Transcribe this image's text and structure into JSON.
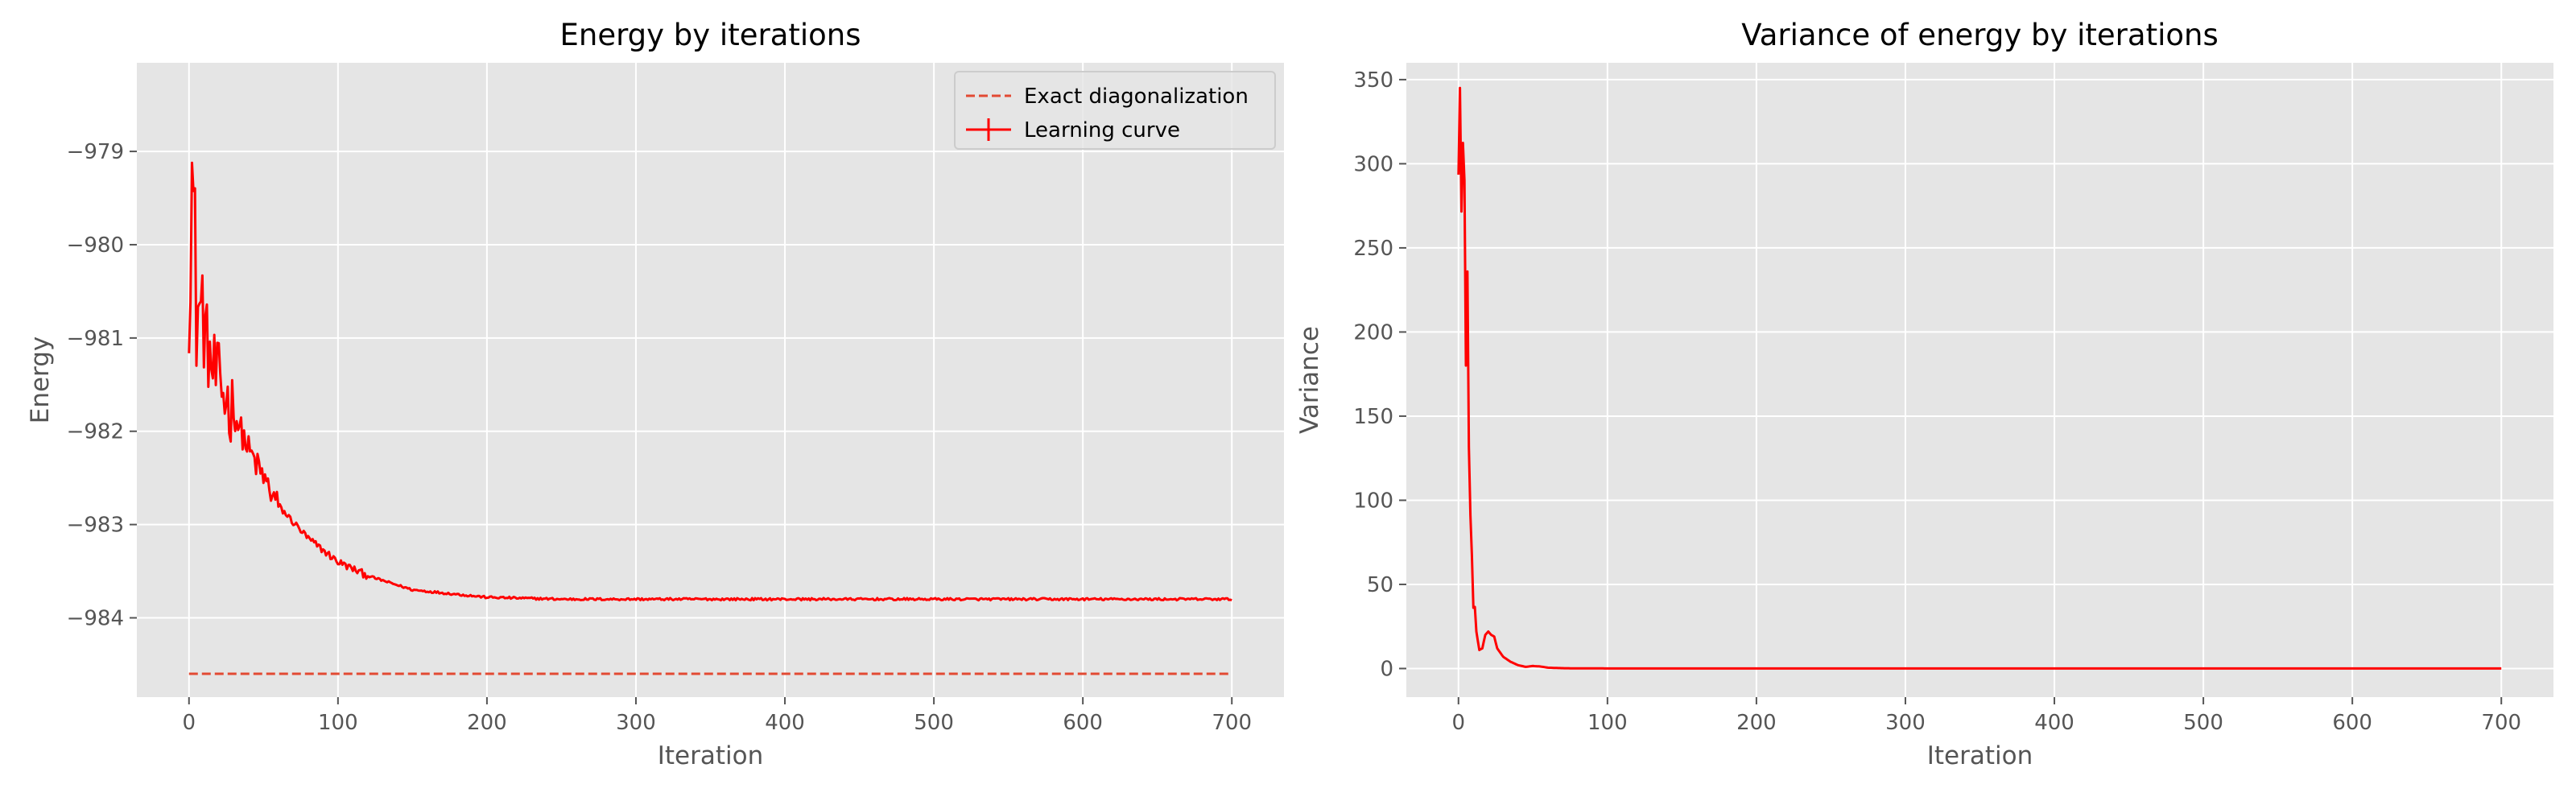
{
  "colors": {
    "figure_bg": "#ffffff",
    "axes_bg": "#e5e5e5",
    "grid": "#ffffff",
    "tick": "#555555",
    "series": "#ff0000",
    "exact": "#e24a33",
    "legend_bg": "#e5e5e5",
    "legend_border": "#cccccc"
  },
  "chart_data": [
    {
      "type": "line",
      "title": "Energy by iterations",
      "xlabel": "Iteration",
      "ylabel": "Energy",
      "xlim": [
        -35,
        735
      ],
      "ylim": [
        -984.85,
        -978.05
      ],
      "xticks": [
        0,
        100,
        200,
        300,
        400,
        500,
        600,
        700
      ],
      "yticks": [
        -984,
        -983,
        -982,
        -981,
        -980,
        -979
      ],
      "ytick_labels": [
        "−984",
        "−983",
        "−982",
        "−981",
        "−980",
        "−979"
      ],
      "grid": true,
      "legend": {
        "placement": "top-right",
        "entries": [
          "Exact diagonalization",
          "Learning curve"
        ]
      },
      "series": [
        {
          "name": "Exact diagonalization",
          "style": "dashed",
          "x": [
            0,
            700
          ],
          "y": [
            -984.6,
            -984.6
          ]
        },
        {
          "name": "Learning curve",
          "style": "solid-noisy",
          "x": [
            0,
            2,
            5,
            10,
            15,
            20,
            30,
            40,
            50,
            60,
            80,
            100,
            120,
            150,
            200,
            250,
            300,
            400,
            500,
            600,
            700
          ],
          "y": [
            -980.3,
            -979.2,
            -980.6,
            -980.9,
            -981.3,
            -981.5,
            -981.8,
            -982.2,
            -982.5,
            -982.8,
            -983.15,
            -983.4,
            -983.55,
            -983.7,
            -983.78,
            -983.8,
            -983.8,
            -983.8,
            -983.8,
            -983.8,
            -983.8
          ]
        }
      ]
    },
    {
      "type": "line",
      "title": "Variance of energy by iterations",
      "xlabel": "Iteration",
      "ylabel": "Variance",
      "xlim": [
        -35,
        735
      ],
      "ylim": [
        -17,
        360
      ],
      "xticks": [
        0,
        100,
        200,
        300,
        400,
        500,
        600,
        700
      ],
      "yticks": [
        0,
        50,
        100,
        150,
        200,
        250,
        300,
        350
      ],
      "ytick_labels": [
        "0",
        "50",
        "100",
        "150",
        "200",
        "250",
        "300",
        "350"
      ],
      "grid": true,
      "series": [
        {
          "style": "solid",
          "x": [
            0,
            1,
            2,
            3,
            4,
            5,
            6,
            7,
            8,
            10,
            12,
            14,
            16,
            18,
            20,
            22,
            24,
            26,
            30,
            35,
            40,
            45,
            50,
            55,
            60,
            70,
            80,
            100,
            200,
            300,
            400,
            500,
            600,
            700
          ],
          "y": [
            300,
            342,
            265,
            305,
            280,
            185,
            222,
            140,
            95,
            45,
            22,
            11,
            12,
            20,
            22,
            20,
            19,
            12,
            7,
            4,
            2,
            1,
            1.5,
            1.2,
            0.5,
            0.2,
            0.1,
            0.05,
            0.02,
            0.02,
            0.02,
            0.02,
            0.02,
            0.02
          ]
        }
      ]
    }
  ]
}
